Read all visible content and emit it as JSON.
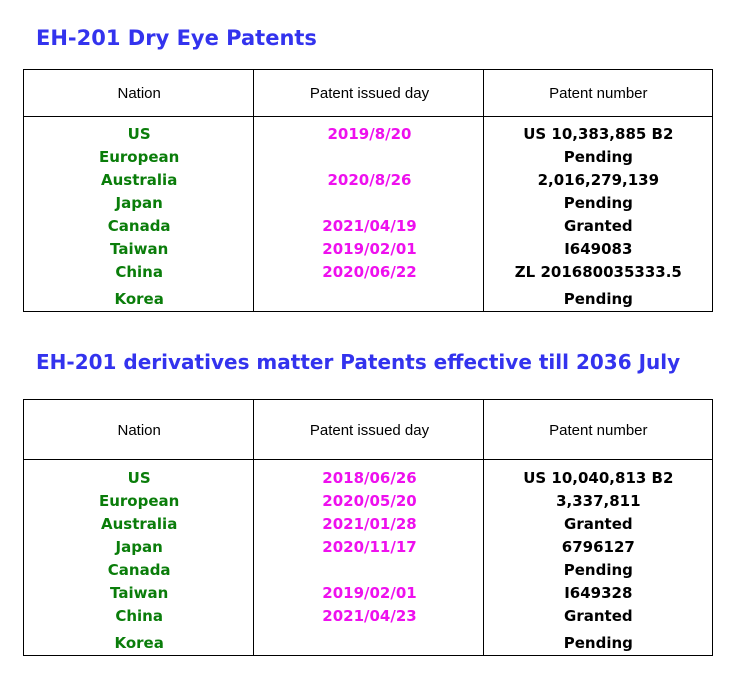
{
  "sections": [
    {
      "title": "EH-201 Dry Eye Patents",
      "headers": [
        "Nation",
        "Patent issued day",
        "Patent number"
      ],
      "rows": [
        {
          "nation": "US",
          "date": "2019/8/20",
          "number": "US 10,383,885 B2"
        },
        {
          "nation": "European",
          "date": "",
          "number": "Pending"
        },
        {
          "nation": "Australia",
          "date": "2020/8/26",
          "number": "2,016,279,139"
        },
        {
          "nation": "Japan",
          "date": "",
          "number": "Pending"
        },
        {
          "nation": "Canada",
          "date": "2021/04/19",
          "number": "Granted"
        },
        {
          "nation": "Taiwan",
          "date": "2019/02/01",
          "number": "I649083"
        },
        {
          "nation": "China",
          "date": "2020/06/22",
          "number": "ZL 201680035333.5"
        },
        {
          "nation": "Korea",
          "date": "",
          "number": "Pending"
        }
      ]
    },
    {
      "title": "EH-201 derivatives matter Patents effective till 2036 July",
      "headers": [
        "Nation",
        "Patent issued day",
        "Patent number"
      ],
      "rows": [
        {
          "nation": "US",
          "date": "2018/06/26",
          "number": "US 10,040,813 B2"
        },
        {
          "nation": "European",
          "date": "2020/05/20",
          "number": "3,337,811"
        },
        {
          "nation": "Australia",
          "date": "2021/01/28",
          "number": "Granted"
        },
        {
          "nation": "Japan",
          "date": "2020/11/17",
          "number": "6796127"
        },
        {
          "nation": "Canada",
          "date": "",
          "number": "Pending"
        },
        {
          "nation": "Taiwan",
          "date": "2019/02/01",
          "number": "I649328"
        },
        {
          "nation": "China",
          "date": "2021/04/23",
          "number": "Granted"
        },
        {
          "nation": "Korea",
          "date": "",
          "number": "Pending"
        }
      ]
    }
  ],
  "colors": {
    "title": "#3333ee",
    "nation": "#0a7d0a",
    "date": "#ee10ee",
    "number": "#000000",
    "border": "#000000"
  }
}
